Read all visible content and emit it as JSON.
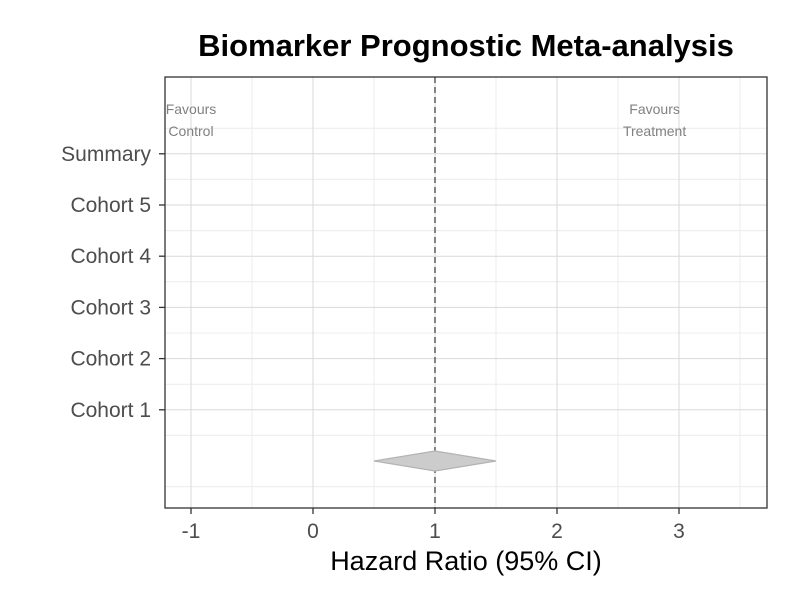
{
  "chart_data": {
    "type": "forest",
    "title": "Biomarker Prognostic Meta-analysis",
    "xlabel": "Hazard Ratio (95% CI)",
    "ylabel": "",
    "xlim": [
      -1.2,
      3.5
    ],
    "x_ticks": [
      -1,
      0,
      1,
      2,
      3
    ],
    "x_tick_labels": [
      "-1",
      "0",
      "1",
      "2",
      "3"
    ],
    "categories": [
      "Cohort 1",
      "Cohort 2",
      "Cohort 3",
      "Cohort 4",
      "Cohort 5",
      "Summary"
    ],
    "reference_line": 1,
    "summary_diamond": {
      "estimate": 1.0,
      "lower": 0.5,
      "upper": 1.5
    },
    "annotations": [
      {
        "id": "favours-control",
        "lines": [
          "Favours",
          "Control"
        ],
        "x": -1.0
      },
      {
        "id": "favours-treatment",
        "lines": [
          "Favours",
          "Treatment"
        ],
        "x": 2.8
      }
    ],
    "grid": true,
    "colors": {
      "diamond_fill": "#cccccc",
      "diamond_stroke": "#b3b3b3",
      "ref_line": "#666666",
      "grid_major": "#d9d9d9",
      "grid_minor": "#ececec",
      "panel_border": "#333333",
      "annotation": "#808080"
    }
  }
}
